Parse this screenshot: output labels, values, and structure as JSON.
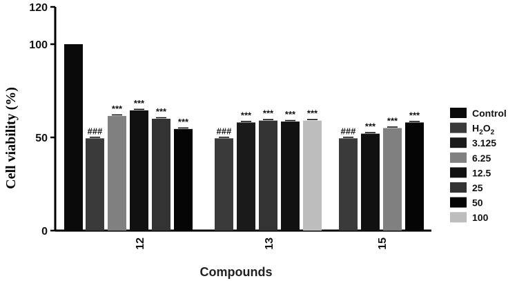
{
  "chart_data": {
    "type": "bar",
    "title": "",
    "ylabel": "Cell viability (%)",
    "xlabel": "Compounds",
    "ylim": [
      0,
      120
    ],
    "yticks": [
      "0",
      "50",
      "100",
      "120"
    ],
    "grid": false,
    "legend_position": "right",
    "legend": [
      {
        "label": "Control",
        "sub": "",
        "color": "#0a0a0a"
      },
      {
        "label": "H",
        "sub": "2",
        "label_after": "O",
        "sub2": "2",
        "color": "#3a3a3a"
      },
      {
        "label": "3.125",
        "sub": "",
        "color": "#1a1a1a"
      },
      {
        "label": "6.25",
        "sub": "",
        "color": "#808080"
      },
      {
        "label": "12.5",
        "sub": "",
        "color": "#111111"
      },
      {
        "label": "25",
        "sub": "",
        "color": "#333333"
      },
      {
        "label": "50",
        "sub": "",
        "color": "#050505"
      },
      {
        "label": "100",
        "sub": "",
        "color": "#bdbdbd"
      }
    ],
    "control": {
      "value": 100,
      "color": "#0a0a0a"
    },
    "groups": [
      {
        "category": "12",
        "bars": [
          {
            "series": "H2O2",
            "value": 49.5,
            "color": "#3a3a3a",
            "sig": "###"
          },
          {
            "series": "3.125",
            "value": 61.5,
            "color": "#808080",
            "sig": "***"
          },
          {
            "series": "6.25",
            "value": 64.5,
            "color": "#111111",
            "sig": "***"
          },
          {
            "series": "12.5",
            "value": 60,
            "color": "#333333",
            "sig": "***"
          },
          {
            "series": "25",
            "value": 54.5,
            "color": "#050505",
            "sig": "***"
          }
        ]
      },
      {
        "category": "13",
        "bars": [
          {
            "series": "H2O2",
            "value": 49.5,
            "color": "#3a3a3a",
            "sig": "###"
          },
          {
            "series": "3.125",
            "value": 58,
            "color": "#1a1a1a",
            "sig": "***"
          },
          {
            "series": "6.25",
            "value": 59,
            "color": "#333333",
            "sig": "***"
          },
          {
            "series": "12.5",
            "value": 58.5,
            "color": "#111111",
            "sig": "***"
          },
          {
            "series": "100",
            "value": 59,
            "color": "#bdbdbd",
            "sig": "***"
          }
        ]
      },
      {
        "category": "15",
        "bars": [
          {
            "series": "H2O2",
            "value": 49.5,
            "color": "#3a3a3a",
            "sig": "###"
          },
          {
            "series": "3.125",
            "value": 52,
            "color": "#111111",
            "sig": "***"
          },
          {
            "series": "6.25",
            "value": 55,
            "color": "#808080",
            "sig": "***"
          },
          {
            "series": "12.5",
            "value": 58,
            "color": "#050505",
            "sig": "***"
          }
        ]
      }
    ]
  }
}
